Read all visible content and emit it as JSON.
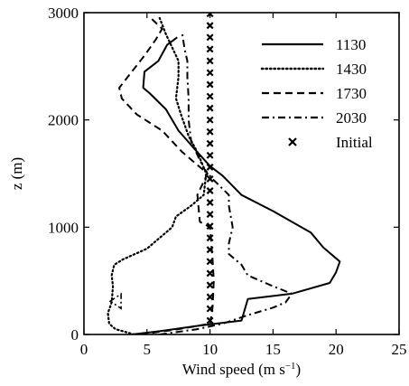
{
  "chart_data": {
    "type": "line",
    "xlabel": "Wind speed (m s",
    "xlabel_exponent": "−1",
    "xlabel_suffix": ")",
    "ylabel": "z (m)",
    "xlim": [
      0,
      25
    ],
    "ylim": [
      0,
      3000
    ],
    "x_ticks": [
      "0",
      "5",
      "10",
      "15",
      "20",
      "25"
    ],
    "y_ticks": [
      "0",
      "1000",
      "2000",
      "3000"
    ],
    "grid": false,
    "legend_position": "top-right",
    "series": [
      {
        "name": "1130",
        "style": "solid",
        "points": [
          [
            3.8,
            0
          ],
          [
            6,
            30
          ],
          [
            9,
            80
          ],
          [
            12.5,
            130
          ],
          [
            13,
            330
          ],
          [
            16.5,
            380
          ],
          [
            19.5,
            480
          ],
          [
            20,
            580
          ],
          [
            20.3,
            680
          ],
          [
            19,
            810
          ],
          [
            18,
            950
          ],
          [
            15,
            1150
          ],
          [
            12.5,
            1300
          ],
          [
            11,
            1480
          ],
          [
            10,
            1570
          ],
          [
            9,
            1700
          ],
          [
            7.5,
            1900
          ],
          [
            6.5,
            2100
          ],
          [
            5.2,
            2250
          ],
          [
            4.7,
            2300
          ],
          [
            4.8,
            2450
          ],
          [
            5.9,
            2550
          ],
          [
            6.6,
            2700
          ],
          [
            7.4,
            2770
          ]
        ]
      },
      {
        "name": "1430",
        "style": "dotted",
        "points": [
          [
            4,
            0
          ],
          [
            2.5,
            50
          ],
          [
            2,
            100
          ],
          [
            1.9,
            200
          ],
          [
            2.2,
            300
          ],
          [
            2.3,
            450
          ],
          [
            2.2,
            550
          ],
          [
            2.4,
            650
          ],
          [
            3.1,
            700
          ],
          [
            5,
            800
          ],
          [
            7,
            1000
          ],
          [
            7.3,
            1100
          ],
          [
            8.5,
            1200
          ],
          [
            9.5,
            1300
          ],
          [
            9.7,
            1500
          ],
          [
            9,
            1700
          ],
          [
            8.3,
            1850
          ],
          [
            7.7,
            2050
          ],
          [
            7.3,
            2200
          ],
          [
            7.5,
            2400
          ],
          [
            7.5,
            2550
          ],
          [
            6.5,
            2800
          ],
          [
            6,
            2950
          ]
        ]
      },
      {
        "name": "1730",
        "style": "dashed",
        "points": [
          [
            4.5,
            0
          ],
          [
            7.5,
            50
          ],
          [
            10,
            100
          ],
          [
            10.2,
            250
          ],
          [
            10.3,
            500
          ],
          [
            10.2,
            700
          ],
          [
            10,
            1000
          ],
          [
            9.2,
            1050
          ],
          [
            9,
            1300
          ],
          [
            9.4,
            1400
          ],
          [
            9.8,
            1500
          ],
          [
            8.8,
            1600
          ],
          [
            7.8,
            1700
          ],
          [
            6.2,
            1900
          ],
          [
            4.2,
            2050
          ],
          [
            3,
            2200
          ],
          [
            2.8,
            2300
          ],
          [
            3.8,
            2450
          ],
          [
            4.8,
            2600
          ],
          [
            5.7,
            2750
          ],
          [
            6.2,
            2850
          ],
          [
            5.3,
            2950
          ]
        ]
      },
      {
        "name": "2030",
        "style": "dashdot",
        "points": [
          [
            6,
            0
          ],
          [
            9,
            50
          ],
          [
            11,
            100
          ],
          [
            13,
            180
          ],
          [
            15,
            250
          ],
          [
            16,
            300
          ],
          [
            16.5,
            380
          ],
          [
            15,
            450
          ],
          [
            13,
            550
          ],
          [
            12.5,
            650
          ],
          [
            11.5,
            750
          ],
          [
            11.5,
            850
          ],
          [
            11.8,
            1000
          ],
          [
            11.5,
            1200
          ],
          [
            11.5,
            1300
          ],
          [
            10.2,
            1450
          ],
          [
            9.5,
            1550
          ],
          [
            8.9,
            1700
          ],
          [
            8.5,
            1800
          ],
          [
            8.3,
            2000
          ],
          [
            8.3,
            2200
          ],
          [
            8.2,
            2400
          ],
          [
            8.2,
            2550
          ],
          [
            8,
            2650
          ],
          [
            7.8,
            2800
          ]
        ]
      },
      {
        "name": "Initial",
        "style": "x-markers",
        "x_value": 10,
        "y_values": [
          130,
          240,
          350,
          460,
          570,
          680,
          790,
          900,
          1010,
          1120,
          1230,
          1340,
          1450,
          1560,
          1670,
          1780,
          1890,
          2000,
          2110,
          2220,
          2330,
          2440,
          2550,
          2660,
          2770,
          2880,
          2990
        ]
      }
    ],
    "annotations": [
      {
        "x": 2.8,
        "y": 310,
        "style": "dashdot-spike"
      }
    ]
  }
}
